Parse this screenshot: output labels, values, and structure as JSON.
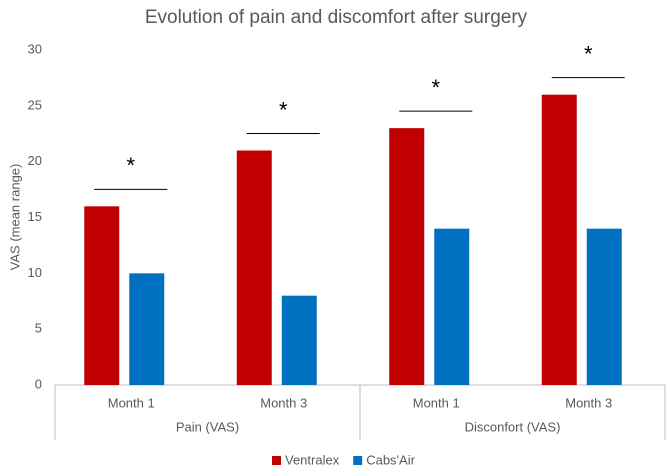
{
  "chart_data": {
    "type": "bar",
    "title": "Evolution of pain and discomfort after surgery",
    "ylabel": "VAS (mean range)",
    "categories": [
      "Month 1",
      "Month 3",
      "Month 1",
      "Month 3"
    ],
    "groups": [
      "Pain (VAS)",
      "Disconfort (VAS)"
    ],
    "series": [
      {
        "name": "Ventralex",
        "color": "#c00000",
        "values": [
          16,
          21,
          23,
          26
        ]
      },
      {
        "name": "Cabs'Air",
        "color": "#0070c0",
        "values": [
          10,
          8,
          14,
          14
        ]
      }
    ],
    "annotations": [
      "*",
      "*",
      "*",
      "*"
    ],
    "ylim": [
      0,
      30
    ],
    "yticks": [
      0,
      5,
      10,
      15,
      20,
      25,
      30
    ],
    "grid": false
  }
}
